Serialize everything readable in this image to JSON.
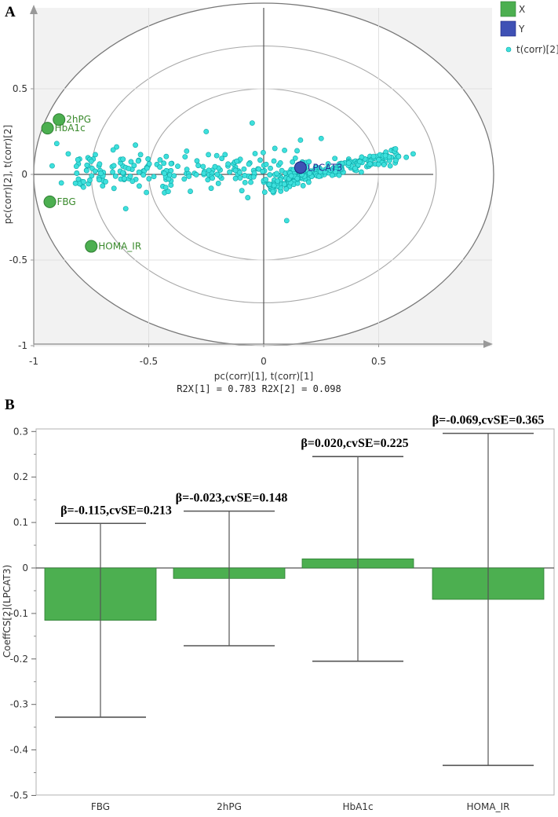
{
  "chart_data": [
    {
      "panel": "A",
      "type": "scatter",
      "xlabel": "pc(corr)[1], t(corr)[1]",
      "ylabel": "pc(corr)[2], t(corr)[2]",
      "subtitle": "R2X[1] = 0.783 R2X[2] = 0.098",
      "xlim": [
        -1,
        1
      ],
      "ylim": [
        -1,
        1
      ],
      "xticks": [
        "-1",
        "-0.5",
        "0",
        "0.5"
      ],
      "yticks": [
        "0.5",
        "0",
        "-0.5",
        "-1"
      ],
      "xtick_values": [
        -1,
        -0.5,
        0,
        0.5
      ],
      "ytick_values": [
        0.5,
        0,
        -0.5,
        -1
      ],
      "ellipse_radii": [
        0.5,
        0.75,
        1.0
      ],
      "legend": [
        {
          "label": "X",
          "color": "#4caf50",
          "marker": "square"
        },
        {
          "label": "Y",
          "color": "#3f51b5",
          "marker": "square"
        },
        {
          "label": "t(corr)[2]",
          "color": "#3ee0dc",
          "marker": "dot"
        }
      ],
      "x_variables": [
        {
          "name": "2hPG",
          "x": -0.89,
          "y": 0.32
        },
        {
          "name": "HbA1c",
          "x": -0.94,
          "y": 0.27
        },
        {
          "name": "FBG",
          "x": -0.93,
          "y": -0.16
        },
        {
          "name": "HOMA_IR",
          "x": -0.75,
          "y": -0.42
        }
      ],
      "y_variables": [
        {
          "name": "LPCAT3",
          "x": 0.16,
          "y": 0.04
        }
      ],
      "score_cloud": {
        "name": "t(corr)[2]",
        "n_points": 420,
        "x_range": [
          -0.95,
          0.66
        ],
        "y_range": [
          -0.28,
          0.31
        ]
      }
    },
    {
      "panel": "B",
      "type": "bar",
      "categories": [
        "FBG",
        "2hPG",
        "HbA1c",
        "HOMA_IR"
      ],
      "values": [
        -0.115,
        -0.023,
        0.02,
        -0.069
      ],
      "ci_upper": [
        0.098,
        0.125,
        0.245,
        0.296
      ],
      "ci_lower": [
        -0.328,
        -0.171,
        -0.205,
        -0.434
      ],
      "annotations": [
        "β=-0.115,cvSE=0.213",
        "β=-0.023,cvSE=0.148",
        "β=0.020,cvSE=0.225",
        "β=-0.069,cvSE=0.365"
      ],
      "ylabel": "CoeffCS[2](LPCAT3)",
      "xlabel": "",
      "ylim": [
        -0.5,
        0.35
      ],
      "yticks": [
        "0.3",
        "0.2",
        "0.1",
        "0",
        "-0.1",
        "-0.2",
        "-0.3",
        "-0.4",
        "-0.5"
      ],
      "ytick_values": [
        0.3,
        0.2,
        0.1,
        0,
        -0.1,
        -0.2,
        -0.3,
        -0.4,
        -0.5
      ],
      "bar_color": "#4caf50"
    }
  ],
  "panel_labels": {
    "a": "A",
    "b": "B"
  },
  "colors": {
    "x_var": "#4caf50",
    "x_var_edge": "#2e7d32",
    "y_var": "#3f51b5",
    "score": "#3ee0dc",
    "score_edge": "#0aa6a6",
    "plot_bg": "#f2f2f2"
  }
}
